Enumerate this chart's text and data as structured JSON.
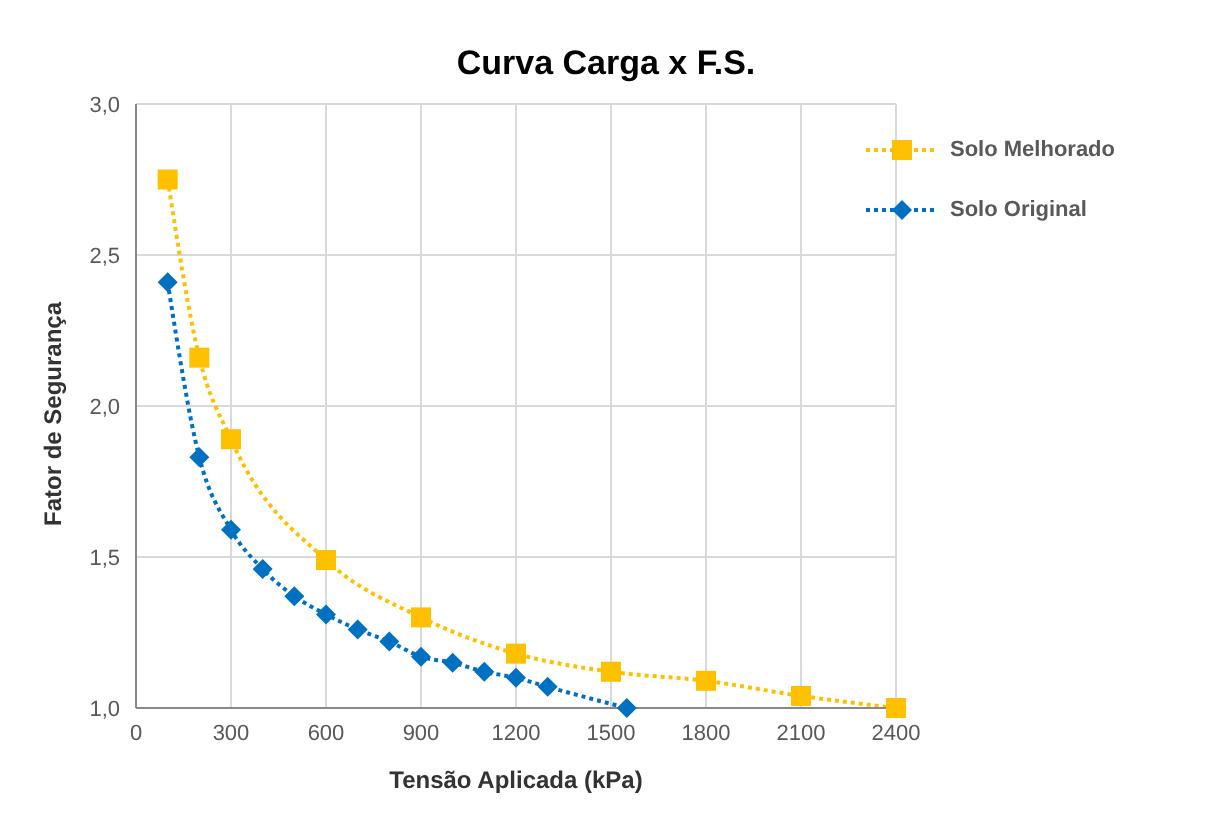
{
  "chart_data": {
    "type": "line",
    "title": "Curva Carga x F.S.",
    "xlabel": "Tensão Aplicada (kPa)",
    "ylabel": "Fator de Segurança",
    "series": [
      {
        "name": "Solo Melhorado",
        "color": "#ffc000",
        "marker": "square",
        "line_style": "dotted",
        "x": [
          100,
          200,
          300,
          600,
          900,
          1200,
          1500,
          1800,
          2100,
          2400
        ],
        "values": [
          2.75,
          2.16,
          1.89,
          1.49,
          1.3,
          1.18,
          1.12,
          1.09,
          1.04,
          1.0
        ]
      },
      {
        "name": "Solo Original",
        "color": "#0070c0",
        "marker": "diamond",
        "line_style": "dotted",
        "x": [
          100,
          200,
          300,
          400,
          500,
          600,
          700,
          800,
          900,
          1000,
          1100,
          1200,
          1300,
          1550
        ],
        "values": [
          2.41,
          1.83,
          1.59,
          1.46,
          1.37,
          1.31,
          1.26,
          1.22,
          1.17,
          1.15,
          1.12,
          1.1,
          1.07,
          1.0
        ]
      }
    ],
    "xlim": [
      0,
      2400
    ],
    "xticks": [
      0,
      300,
      600,
      900,
      1200,
      1500,
      1800,
      2100,
      2400
    ],
    "ylim": [
      1.0,
      3.0
    ],
    "yticks": [
      {
        "value": 1.0,
        "label": "1,0"
      },
      {
        "value": 1.5,
        "label": "1,5"
      },
      {
        "value": 2.0,
        "label": "2,0"
      },
      {
        "value": 2.5,
        "label": "2,5"
      },
      {
        "value": 3.0,
        "label": "3,0"
      }
    ],
    "grid": true,
    "legend": "top right"
  }
}
